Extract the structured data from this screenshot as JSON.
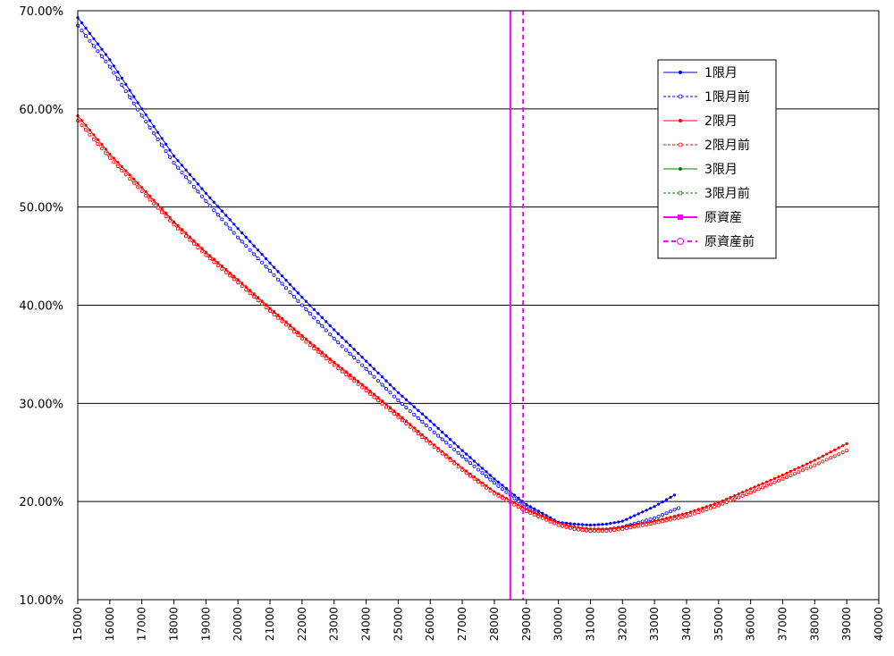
{
  "chart_data": {
    "type": "line",
    "title": "",
    "xlabel": "",
    "ylabel": "",
    "xlim": [
      15000,
      40000
    ],
    "ylim": [
      10,
      70
    ],
    "grid": true,
    "legend_position": "top-right",
    "x_ticks": [
      "15000",
      "16000",
      "17000",
      "18000",
      "19000",
      "20000",
      "21000",
      "22000",
      "23000",
      "24000",
      "25000",
      "26000",
      "27000",
      "28000",
      "29000",
      "30000",
      "31000",
      "32000",
      "33000",
      "34000",
      "35000",
      "36000",
      "37000",
      "38000",
      "39000",
      "40000"
    ],
    "y_ticks": [
      "10.00%",
      "20.00%",
      "30.00%",
      "40.00%",
      "50.00%",
      "60.00%",
      "70.00%"
    ],
    "series": [
      {
        "name": "1限月",
        "color": "#0000ff",
        "dashed": false,
        "marker": "filled-dot",
        "step": 125,
        "points": [
          [
            15000,
            69.3
          ],
          [
            16000,
            65.0
          ],
          [
            17000,
            60.0
          ],
          [
            18000,
            55.2
          ],
          [
            19000,
            51.4
          ],
          [
            20000,
            47.8
          ],
          [
            21000,
            44.3
          ],
          [
            22000,
            40.8
          ],
          [
            23000,
            37.5
          ],
          [
            24000,
            34.3
          ],
          [
            25000,
            31.1
          ],
          [
            26000,
            28.2
          ],
          [
            27000,
            25.2
          ],
          [
            28000,
            22.3
          ],
          [
            29000,
            19.7
          ],
          [
            30000,
            17.9
          ],
          [
            30500,
            17.7
          ],
          [
            31000,
            17.6
          ],
          [
            31500,
            17.7
          ],
          [
            32000,
            18.0
          ],
          [
            33000,
            19.5
          ],
          [
            33700,
            20.8
          ]
        ]
      },
      {
        "name": "1限月前",
        "color": "#0000ff",
        "dashed": true,
        "marker": "hollow-dot",
        "step": 125,
        "points": [
          [
            15000,
            68.5
          ],
          [
            16000,
            64.3
          ],
          [
            17000,
            59.3
          ],
          [
            18000,
            54.5
          ],
          [
            19000,
            50.6
          ],
          [
            20000,
            46.9
          ],
          [
            21000,
            43.5
          ],
          [
            22000,
            40.0
          ],
          [
            23000,
            36.6
          ],
          [
            24000,
            33.5
          ],
          [
            25000,
            30.3
          ],
          [
            26000,
            27.4
          ],
          [
            27000,
            24.6
          ],
          [
            28000,
            21.9
          ],
          [
            29000,
            19.4
          ],
          [
            30000,
            17.6
          ],
          [
            30500,
            17.2
          ],
          [
            31000,
            17.0
          ],
          [
            31500,
            17.1
          ],
          [
            32000,
            17.4
          ],
          [
            33000,
            18.3
          ],
          [
            33800,
            19.4
          ]
        ]
      },
      {
        "name": "2限月",
        "color": "#ff0000",
        "dashed": false,
        "marker": "filled-dot",
        "step": 125,
        "points": [
          [
            15000,
            59.3
          ],
          [
            16000,
            55.4
          ],
          [
            17000,
            52.0
          ],
          [
            18000,
            48.5
          ],
          [
            19000,
            45.4
          ],
          [
            20000,
            42.6
          ],
          [
            21000,
            39.7
          ],
          [
            22000,
            36.9
          ],
          [
            23000,
            34.2
          ],
          [
            24000,
            31.6
          ],
          [
            25000,
            28.9
          ],
          [
            26000,
            26.1
          ],
          [
            27000,
            23.4
          ],
          [
            28000,
            21.0
          ],
          [
            29000,
            19.2
          ],
          [
            30000,
            17.8
          ],
          [
            30500,
            17.4
          ],
          [
            31000,
            17.2
          ],
          [
            31500,
            17.2
          ],
          [
            32000,
            17.4
          ],
          [
            33000,
            18.0
          ],
          [
            34000,
            18.8
          ],
          [
            35000,
            19.9
          ],
          [
            36000,
            21.3
          ],
          [
            37000,
            22.7
          ],
          [
            38000,
            24.2
          ],
          [
            39000,
            25.9
          ]
        ]
      },
      {
        "name": "2限月前",
        "color": "#ff0000",
        "dashed": true,
        "marker": "hollow-dot",
        "step": 125,
        "points": [
          [
            15000,
            58.8
          ],
          [
            16000,
            55.0
          ],
          [
            17000,
            51.6
          ],
          [
            18000,
            48.2
          ],
          [
            19000,
            45.1
          ],
          [
            20000,
            42.3
          ],
          [
            21000,
            39.4
          ],
          [
            22000,
            36.6
          ],
          [
            23000,
            33.9
          ],
          [
            24000,
            31.3
          ],
          [
            25000,
            28.6
          ],
          [
            26000,
            25.9
          ],
          [
            27000,
            23.2
          ],
          [
            28000,
            20.8
          ],
          [
            29000,
            19.0
          ],
          [
            30000,
            17.6
          ],
          [
            30500,
            17.2
          ],
          [
            31000,
            17.0
          ],
          [
            31500,
            17.0
          ],
          [
            32000,
            17.2
          ],
          [
            33000,
            17.8
          ],
          [
            34000,
            18.5
          ],
          [
            35000,
            19.6
          ],
          [
            36000,
            20.9
          ],
          [
            37000,
            22.3
          ],
          [
            38000,
            23.7
          ],
          [
            39000,
            25.2
          ]
        ]
      },
      {
        "name": "3限月",
        "color": "#008000",
        "dashed": false,
        "marker": "filled-dot",
        "points": []
      },
      {
        "name": "3限月前",
        "color": "#008000",
        "dashed": true,
        "marker": "hollow-dot",
        "points": []
      },
      {
        "name": "原資産",
        "color": "#ff00ff",
        "dashed": false,
        "marker": "filled-square",
        "vertical_x": 28500
      },
      {
        "name": "原資産前",
        "color": "#ff00ff",
        "dashed": true,
        "marker": "hollow-circle",
        "vertical_x": 28900
      }
    ]
  }
}
